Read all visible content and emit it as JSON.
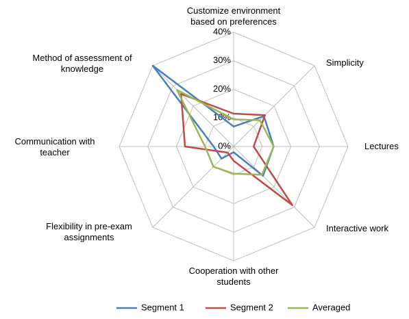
{
  "chart_data": {
    "type": "radar",
    "categories": [
      "Customize environment based on preferences",
      "Simplicity",
      "Lectures",
      "Interactive work",
      "Cooperation with other students",
      "Flexibility in pre-exam assignments",
      "Communication with teacher",
      "Method of assessment of knowledge"
    ],
    "series": [
      {
        "name": "Segment 1",
        "color": "#4a7ebb",
        "values": [
          7,
          15,
          14,
          14.5,
          2,
          6,
          7,
          40
        ]
      },
      {
        "name": "Segment 2",
        "color": "#be4b48",
        "values": [
          11.5,
          15.5,
          7,
          29,
          5,
          3,
          17,
          26
        ]
      },
      {
        "name": "Averaged",
        "color": "#98b954",
        "values": [
          9.5,
          13,
          14,
          14,
          9.5,
          10,
          10,
          28
        ]
      }
    ],
    "ylim": [
      0,
      40
    ],
    "yticks": [
      {
        "value": 0,
        "label": "0%"
      },
      {
        "value": 10,
        "label": "10%"
      },
      {
        "value": 20,
        "label": "20%"
      },
      {
        "value": 30,
        "label": "30%"
      },
      {
        "value": 40,
        "label": "40%"
      }
    ],
    "grid": true,
    "legend": "bottom"
  }
}
